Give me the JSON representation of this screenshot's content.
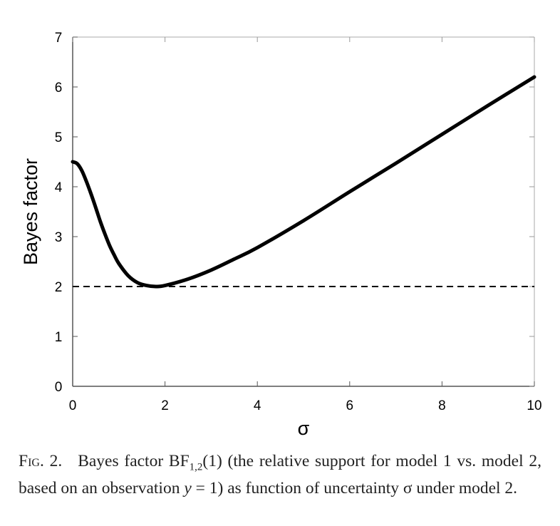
{
  "chart_data": {
    "type": "line",
    "xlabel": "σ",
    "ylabel": "Bayes factor",
    "xlim": [
      0,
      10
    ],
    "ylim": [
      0,
      7
    ],
    "xticks": [
      "0",
      "2",
      "4",
      "6",
      "8",
      "10"
    ],
    "yticks": [
      "0",
      "1",
      "2",
      "3",
      "4",
      "5",
      "6",
      "7"
    ],
    "grid": false,
    "series": [
      {
        "name": "BF_1,2(1)",
        "style": "solid",
        "x": [
          0,
          0.1,
          0.2,
          0.3,
          0.4,
          0.5,
          0.6,
          0.7,
          0.8,
          0.9,
          1.0,
          1.2,
          1.4,
          1.6,
          1.8,
          2.0,
          2.5,
          3,
          3.5,
          4,
          5,
          6,
          7,
          8,
          9,
          10
        ],
        "y": [
          4.5,
          4.46,
          4.32,
          4.1,
          3.85,
          3.58,
          3.3,
          3.05,
          2.82,
          2.63,
          2.46,
          2.22,
          2.08,
          2.02,
          2.0,
          2.02,
          2.15,
          2.33,
          2.55,
          2.78,
          3.32,
          3.9,
          4.47,
          5.05,
          5.63,
          6.2
        ]
      },
      {
        "name": "reference",
        "style": "dashed",
        "x": [
          0,
          10
        ],
        "y": [
          2,
          2
        ]
      }
    ]
  },
  "caption": {
    "label": "Fig. 2.",
    "text_1": "Bayes factor BF",
    "subscript": "1,2",
    "text_2": "(1) (the relative support for model 1 vs. model 2, based on an observation ",
    "var": "y",
    "text_3": " = 1) as function of uncertainty σ under model 2."
  }
}
